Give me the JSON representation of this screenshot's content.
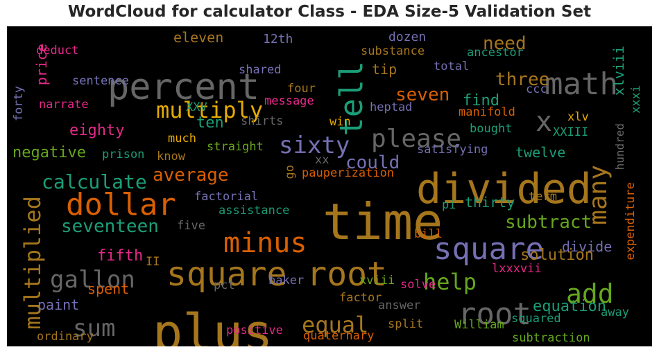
{
  "chart_data": {
    "type": "wordcloud",
    "title": "WordCloud for calculator Class - EDA Size-5 Validation Set",
    "background": "#000000",
    "palette": [
      "#a6761d",
      "#666666",
      "#1b9e77",
      "#d95f02",
      "#7570b3",
      "#e7298a",
      "#66a61e",
      "#e6ab02"
    ],
    "words": [
      {
        "text": "percent",
        "color": "#666666",
        "rank": 6
      },
      {
        "text": "math",
        "color": "#666666",
        "rank": 4
      },
      {
        "text": "tell",
        "color": "#1b9e77",
        "rank": 4
      },
      {
        "text": "multiply",
        "color": "#e6ab02",
        "rank": 3
      },
      {
        "text": "x",
        "color": "#666666",
        "rank": 4
      },
      {
        "text": "please",
        "color": "#666666",
        "rank": 4
      },
      {
        "text": "sixty",
        "color": "#7570b3",
        "rank": 3
      },
      {
        "text": "divided",
        "color": "#a6761d",
        "rank": 6
      },
      {
        "text": "dollar",
        "color": "#d95f02",
        "rank": 5
      },
      {
        "text": "time",
        "color": "#a6761d",
        "rank": 7
      },
      {
        "text": "many",
        "color": "#a6761d",
        "rank": 3
      },
      {
        "text": "minus",
        "color": "#d95f02",
        "rank": 4
      },
      {
        "text": "square",
        "color": "#7570b3",
        "rank": 5
      },
      {
        "text": "square root",
        "color": "#a6761d",
        "rank": 6
      },
      {
        "text": "multiplied",
        "color": "#a6761d",
        "rank": 4
      },
      {
        "text": "plus",
        "color": "#a6761d",
        "rank": 7
      },
      {
        "text": "root",
        "color": "#666666",
        "rank": 5
      },
      {
        "text": "add",
        "color": "#66a61e",
        "rank": 5
      },
      {
        "text": "gallon",
        "color": "#666666",
        "rank": 4
      },
      {
        "text": "sum",
        "color": "#666666",
        "rank": 4
      },
      {
        "text": "equal",
        "color": "#a6761d",
        "rank": 3
      },
      {
        "text": "help",
        "color": "#66a61e",
        "rank": 3
      },
      {
        "text": "calculate",
        "color": "#1b9e77",
        "rank": 3
      },
      {
        "text": "average",
        "color": "#d95f02",
        "rank": 2
      },
      {
        "text": "could",
        "color": "#7570b3",
        "rank": 2
      },
      {
        "text": "seventeen",
        "color": "#1b9e77",
        "rank": 2
      },
      {
        "text": "subtract",
        "color": "#66a61e",
        "rank": 2
      },
      {
        "text": "need",
        "color": "#a6761d",
        "rank": 2
      },
      {
        "text": "three",
        "color": "#a6761d",
        "rank": 2
      },
      {
        "text": "seven",
        "color": "#d95f02",
        "rank": 2
      },
      {
        "text": "find",
        "color": "#1b9e77",
        "rank": 2
      },
      {
        "text": "eighty",
        "color": "#e7298a",
        "rank": 2
      },
      {
        "text": "negative",
        "color": "#66a61e",
        "rank": 2
      },
      {
        "text": "ten",
        "color": "#1b9e77",
        "rank": 2
      },
      {
        "text": "twelve",
        "color": "#1b9e77",
        "rank": 2
      },
      {
        "text": "thirty",
        "color": "#1b9e77",
        "rank": 2
      },
      {
        "text": "solution",
        "color": "#a6761d",
        "rank": 2
      },
      {
        "text": "divide",
        "color": "#7570b3",
        "rank": 2
      },
      {
        "text": "equation",
        "color": "#1b9e77",
        "rank": 2
      },
      {
        "text": "fifth",
        "color": "#e7298a",
        "rank": 2
      },
      {
        "text": "price",
        "color": "#e7298a",
        "rank": 2
      },
      {
        "text": "eleven",
        "color": "#a6761d",
        "rank": 1
      },
      {
        "text": "12th",
        "color": "#7570b3",
        "rank": 1
      },
      {
        "text": "dozen",
        "color": "#7570b3",
        "rank": 1
      },
      {
        "text": "deduct",
        "color": "#e7298a",
        "rank": 1
      },
      {
        "text": "substance",
        "color": "#a6761d",
        "rank": 1
      },
      {
        "text": "ancestor",
        "color": "#1b9e77",
        "rank": 1
      },
      {
        "text": "shared",
        "color": "#7570b3",
        "rank": 1
      },
      {
        "text": "tip",
        "color": "#a6761d",
        "rank": 2
      },
      {
        "text": "total",
        "color": "#7570b3",
        "rank": 1
      },
      {
        "text": "sentence",
        "color": "#7570b3",
        "rank": 1
      },
      {
        "text": "four",
        "color": "#a6761d",
        "rank": 1
      },
      {
        "text": "message",
        "color": "#e7298a",
        "rank": 1
      },
      {
        "text": "ccc",
        "color": "#7570b3",
        "rank": 1
      },
      {
        "text": "xlviii",
        "color": "#1b9e77",
        "rank": 1
      },
      {
        "text": "xxxi",
        "color": "#1b9e77",
        "rank": 1
      },
      {
        "text": "forty",
        "color": "#7570b3",
        "rank": 1
      },
      {
        "text": "narrate",
        "color": "#e7298a",
        "rank": 1
      },
      {
        "text": "XXV",
        "color": "#1b9e77",
        "rank": 1
      },
      {
        "text": "heptad",
        "color": "#7570b3",
        "rank": 1
      },
      {
        "text": "manifold",
        "color": "#d95f02",
        "rank": 1
      },
      {
        "text": "xlv",
        "color": "#e6ab02",
        "rank": 1
      },
      {
        "text": "shirts",
        "color": "#666666",
        "rank": 1
      },
      {
        "text": "win",
        "color": "#e6ab02",
        "rank": 1
      },
      {
        "text": "bought",
        "color": "#1b9e77",
        "rank": 1
      },
      {
        "text": "XXIII",
        "color": "#1b9e77",
        "rank": 1
      },
      {
        "text": "much",
        "color": "#e6ab02",
        "rank": 1
      },
      {
        "text": "straight",
        "color": "#66a61e",
        "rank": 1
      },
      {
        "text": "hundred",
        "color": "#666666",
        "rank": 1
      },
      {
        "text": "prison",
        "color": "#1b9e77",
        "rank": 1
      },
      {
        "text": "know",
        "color": "#a6761d",
        "rank": 1
      },
      {
        "text": "xx",
        "color": "#666666",
        "rank": 1
      },
      {
        "text": "satisfying",
        "color": "#7570b3",
        "rank": 1
      },
      {
        "text": "go",
        "color": "#a6761d",
        "rank": 1
      },
      {
        "text": "pauperization",
        "color": "#d95f02",
        "rank": 1
      },
      {
        "text": "expenditure",
        "color": "#d95f02",
        "rank": 1
      },
      {
        "text": "factorial",
        "color": "#7570b3",
        "rank": 1
      },
      {
        "text": "pi",
        "color": "#1b9e77",
        "rank": 1
      },
      {
        "text": "term",
        "color": "#a6761d",
        "rank": 1
      },
      {
        "text": "assistance",
        "color": "#1b9e77",
        "rank": 1
      },
      {
        "text": "five",
        "color": "#666666",
        "rank": 1
      },
      {
        "text": "bill",
        "color": "#d95f02",
        "rank": 1
      },
      {
        "text": "II",
        "color": "#a6761d",
        "rank": 1
      },
      {
        "text": "lxxxvii",
        "color": "#e7298a",
        "rank": 1
      },
      {
        "text": "spent",
        "color": "#d95f02",
        "rank": 1
      },
      {
        "text": "pct",
        "color": "#666666",
        "rank": 1
      },
      {
        "text": "baker",
        "color": "#7570b3",
        "rank": 1
      },
      {
        "text": "xviii",
        "color": "#66a61e",
        "rank": 1
      },
      {
        "text": "solve",
        "color": "#e7298a",
        "rank": 1
      },
      {
        "text": "paint",
        "color": "#7570b3",
        "rank": 1
      },
      {
        "text": "factor",
        "color": "#a6761d",
        "rank": 1
      },
      {
        "text": "answer",
        "color": "#666666",
        "rank": 1
      },
      {
        "text": "away",
        "color": "#1b9e77",
        "rank": 1
      },
      {
        "text": "squared",
        "color": "#1b9e77",
        "rank": 1
      },
      {
        "text": "split",
        "color": "#a6761d",
        "rank": 1
      },
      {
        "text": "William",
        "color": "#66a61e",
        "rank": 1
      },
      {
        "text": "positive",
        "color": "#e7298a",
        "rank": 1
      },
      {
        "text": "ordinary",
        "color": "#a6761d",
        "rank": 1
      },
      {
        "text": "quaternary",
        "color": "#d95f02",
        "rank": 1
      },
      {
        "text": "subtraction",
        "color": "#66a61e",
        "rank": 1
      }
    ]
  }
}
